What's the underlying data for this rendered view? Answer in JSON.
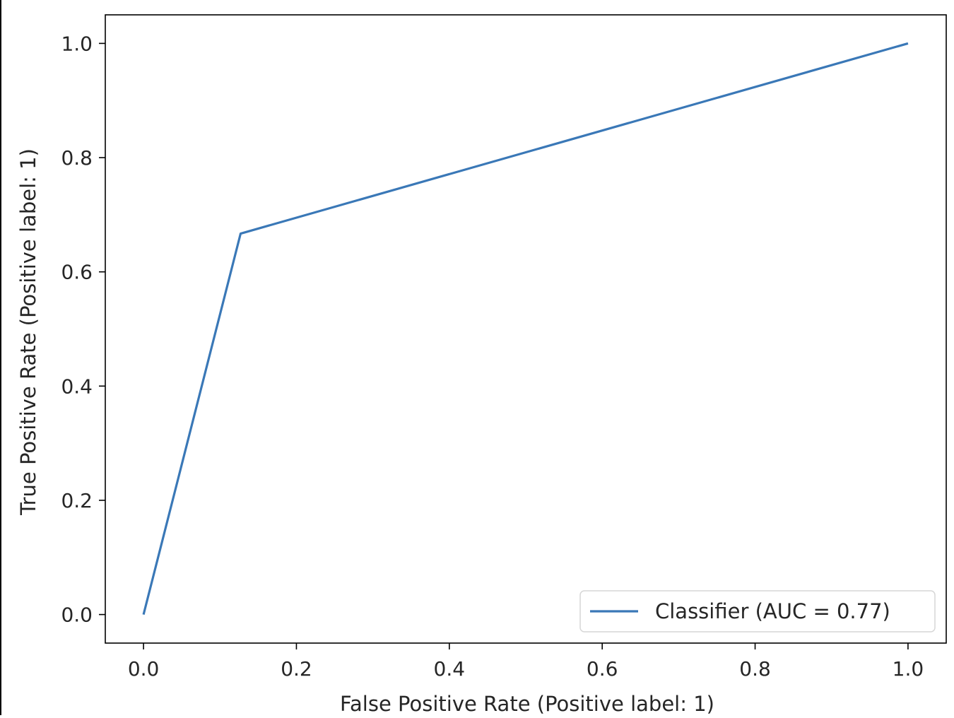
{
  "chart_data": {
    "type": "line",
    "title": "",
    "xlabel": "False Positive Rate (Positive label: 1)",
    "ylabel": "True Positive Rate (Positive label: 1)",
    "xlim": [
      -0.05,
      1.05
    ],
    "ylim": [
      -0.05,
      1.05
    ],
    "x_ticks": [
      0.0,
      0.2,
      0.4,
      0.6,
      0.8,
      1.0
    ],
    "y_ticks": [
      0.0,
      0.2,
      0.4,
      0.6,
      0.8,
      1.0
    ],
    "x_tick_labels": [
      "0.0",
      "0.2",
      "0.4",
      "0.6",
      "0.8",
      "1.0"
    ],
    "y_tick_labels": [
      "0.0",
      "0.2",
      "0.4",
      "0.6",
      "0.8",
      "1.0"
    ],
    "grid": false,
    "legend_position": "lower-right",
    "series": [
      {
        "name": "Classifier (AUC = 0.77)",
        "color": "#3a78b7",
        "x": [
          0.0,
          0.127,
          1.0
        ],
        "y": [
          0.0,
          0.667,
          1.0
        ]
      }
    ]
  }
}
